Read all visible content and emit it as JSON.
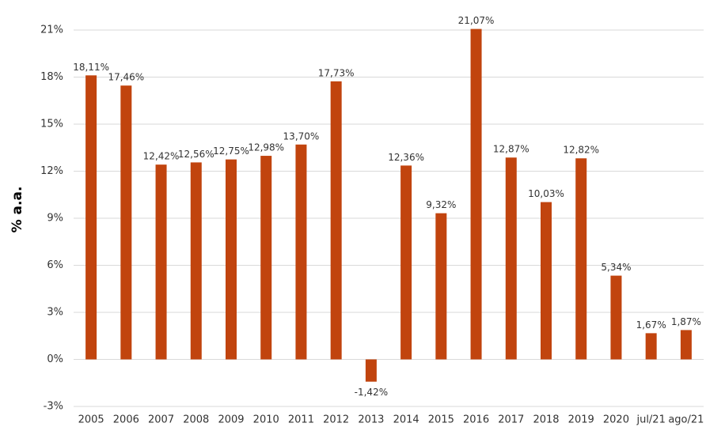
{
  "chart_data": {
    "type": "bar",
    "y_label": "% a.a.",
    "categories": [
      "2005",
      "2006",
      "2007",
      "2008",
      "2009",
      "2010",
      "2011",
      "2012",
      "2013",
      "2014",
      "2015",
      "2016",
      "2017",
      "2018",
      "2019",
      "2020",
      "jul/21",
      "ago/21"
    ],
    "values": [
      18.11,
      17.46,
      12.42,
      12.56,
      12.75,
      12.98,
      13.7,
      17.73,
      -1.42,
      12.36,
      9.32,
      21.07,
      12.87,
      10.03,
      12.82,
      5.34,
      1.67,
      1.87
    ],
    "value_labels": [
      "18,11%",
      "17,46%",
      "12,42%",
      "12,56%",
      "12,75%",
      "12,98%",
      "13,70%",
      "17,73%",
      "-1,42%",
      "12,36%",
      "9,32%",
      "21,07%",
      "12,87%",
      "10,03%",
      "12,82%",
      "5,34%",
      "1,67%",
      "1,87%"
    ],
    "color": "#c1440e",
    "ylim": [
      -3,
      21
    ],
    "yticks": [
      {
        "value": -3,
        "label": "-3%"
      },
      {
        "value": 0,
        "label": "0%"
      },
      {
        "value": 3,
        "label": "3%"
      },
      {
        "value": 6,
        "label": "6%"
      },
      {
        "value": 9,
        "label": "9%"
      },
      {
        "value": 12,
        "label": "12%"
      },
      {
        "value": 15,
        "label": "15%"
      },
      {
        "value": 18,
        "label": "18%"
      },
      {
        "value": 21,
        "label": "21%"
      }
    ],
    "grid": true
  }
}
